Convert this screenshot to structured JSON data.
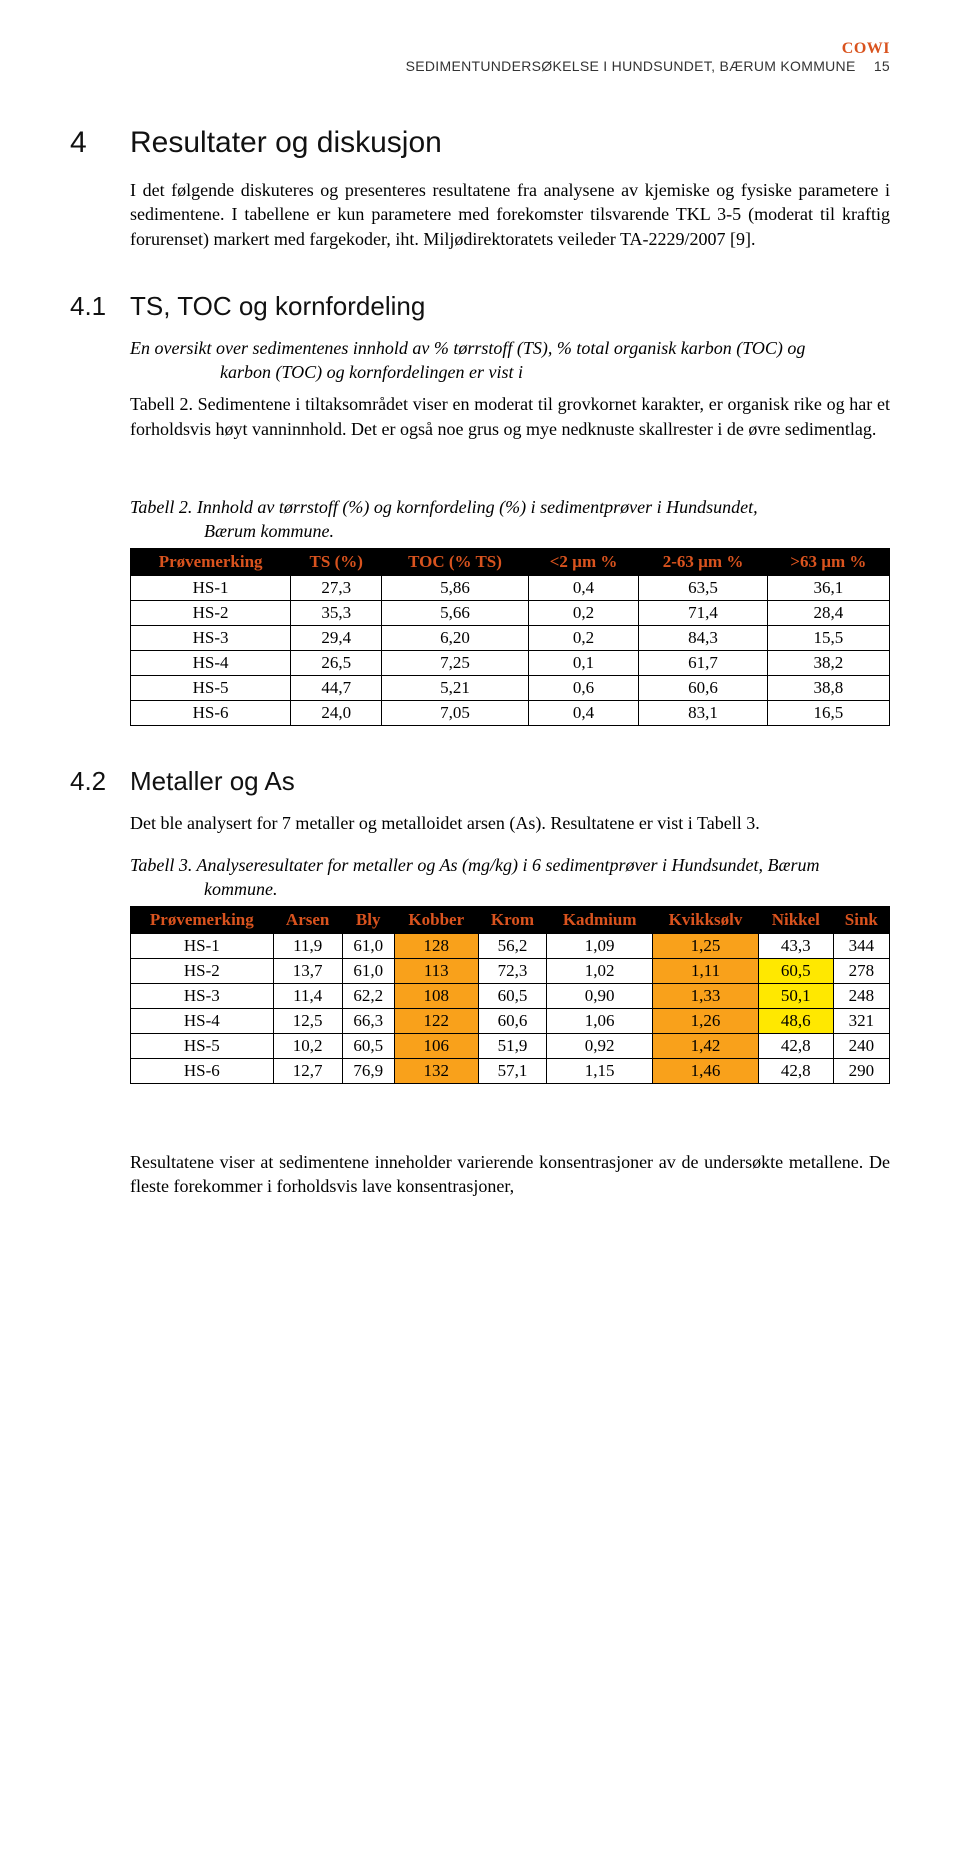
{
  "header": {
    "brand": "COWI",
    "running_title": "SEDIMENTUNDERSØKELSE I HUNDSUNDET, BÆRUM KOMMUNE",
    "page_number": "15"
  },
  "section4": {
    "number": "4",
    "title": "Resultater og diskusjon",
    "para1": "I det følgende diskuteres og presenteres resultatene fra analysene av kjemiske og fysiske parametere i sedimentene. I tabellene er kun parametere med forekomster tilsvarende TKL 3-5 (moderat til kraftig forurenset) markert med fargekoder, iht. Miljødirektoratets veileder TA-2229/2007 [9]."
  },
  "section41": {
    "number": "4.1",
    "title": "TS, TOC og kornfordeling",
    "intro_line1": "En oversikt over sedimentenes innhold av % tørrstoff (TS), % total organisk karbon (TOC) og",
    "intro_line2": "karbon (TOC) og kornfordelingen er vist i",
    "para": "Tabell 2. Sedimentene i tiltaksområdet viser en moderat til grovkornet karakter, er organisk rike og har et forholdsvis høyt vanninnhold. Det er også noe grus og mye nedknuste skallrester i de øvre sedimentlag."
  },
  "table2": {
    "caption_line1": "Tabell 2. Innhold av tørrstoff (%) og kornfordeling (%) i sedimentprøver i Hundsundet,",
    "caption_line2": "Bærum kommune.",
    "columns": [
      "Prøvemerking",
      "TS (%)",
      "TOC (% TS)",
      "<2 µm %",
      "2-63 µm %",
      ">63 µm %"
    ],
    "rows": [
      [
        "HS-1",
        "27,3",
        "5,86",
        "0,4",
        "63,5",
        "36,1"
      ],
      [
        "HS-2",
        "35,3",
        "5,66",
        "0,2",
        "71,4",
        "28,4"
      ],
      [
        "HS-3",
        "29,4",
        "6,20",
        "0,2",
        "84,3",
        "15,5"
      ],
      [
        "HS-4",
        "26,5",
        "7,25",
        "0,1",
        "61,7",
        "38,2"
      ],
      [
        "HS-5",
        "44,7",
        "5,21",
        "0,6",
        "60,6",
        "38,8"
      ],
      [
        "HS-6",
        "24,0",
        "7,05",
        "0,4",
        "83,1",
        "16,5"
      ]
    ]
  },
  "section42": {
    "number": "4.2",
    "title": "Metaller og As",
    "para": "Det ble analysert for 7 metaller og metalloidet arsen (As). Resultatene er vist i Tabell 3."
  },
  "table3": {
    "caption_line1": "Tabell 3. Analyseresultater for metaller og As (mg/kg) i 6 sedimentprøver i Hundsundet, Bærum",
    "caption_line2": "kommune.",
    "columns": [
      "Prøvemerking",
      "Arsen",
      "Bly",
      "Kobber",
      "Krom",
      "Kadmium",
      "Kvikksølv",
      "Nikkel",
      "Sink"
    ],
    "rows": [
      {
        "cells": [
          "HS-1",
          "11,9",
          "61,0",
          "128",
          "56,2",
          "1,09",
          "1,25",
          "43,3",
          "344"
        ],
        "hl": {
          "3": "orange",
          "6": "orange"
        }
      },
      {
        "cells": [
          "HS-2",
          "13,7",
          "61,0",
          "113",
          "72,3",
          "1,02",
          "1,11",
          "60,5",
          "278"
        ],
        "hl": {
          "3": "orange",
          "6": "orange",
          "7": "yellow"
        }
      },
      {
        "cells": [
          "HS-3",
          "11,4",
          "62,2",
          "108",
          "60,5",
          "0,90",
          "1,33",
          "50,1",
          "248"
        ],
        "hl": {
          "3": "orange",
          "6": "orange",
          "7": "yellow"
        }
      },
      {
        "cells": [
          "HS-4",
          "12,5",
          "66,3",
          "122",
          "60,6",
          "1,06",
          "1,26",
          "48,6",
          "321"
        ],
        "hl": {
          "3": "orange",
          "6": "orange",
          "7": "yellow"
        }
      },
      {
        "cells": [
          "HS-5",
          "10,2",
          "60,5",
          "106",
          "51,9",
          "0,92",
          "1,42",
          "42,8",
          "240"
        ],
        "hl": {
          "3": "orange",
          "6": "orange"
        }
      },
      {
        "cells": [
          "HS-6",
          "12,7",
          "76,9",
          "132",
          "57,1",
          "1,15",
          "1,46",
          "42,8",
          "290"
        ],
        "hl": {
          "3": "orange",
          "6": "orange"
        }
      }
    ]
  },
  "closing_para": "Resultatene viser at sedimentene inneholder varierende konsentrasjoner av de undersøkte metallene. De fleste forekommer i forholdsvis lave konsentrasjoner,",
  "colors": {
    "brand": "#d9531e",
    "header_bg": "#000000",
    "header_fg": "#d9531e",
    "hl_orange": "#f9a11b",
    "hl_yellow": "#ffe800"
  }
}
